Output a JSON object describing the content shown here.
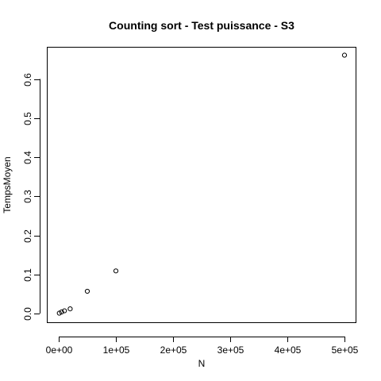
{
  "chart_data": {
    "type": "scatter",
    "title": "Counting sort - Test puissance - S3",
    "xlabel": "N",
    "ylabel": "TempsMoyen",
    "xlim": [
      0,
      500000
    ],
    "ylim": [
      0,
      0.66
    ],
    "x_ticks": [
      0,
      100000,
      200000,
      300000,
      400000,
      500000
    ],
    "x_tick_labels": [
      "0e+00",
      "1e+05",
      "2e+05",
      "3e+05",
      "4e+05",
      "5e+05"
    ],
    "y_ticks": [
      0,
      0.1,
      0.2,
      0.3,
      0.4,
      0.5,
      0.6
    ],
    "y_tick_labels": [
      "0.0",
      "0.1",
      "0.2",
      "0.3",
      "0.4",
      "0.5",
      "0.6"
    ],
    "grid": false,
    "legend": "none",
    "marker": "open-circle",
    "point_color": "#000000",
    "points": [
      {
        "x": 1000,
        "y": 0.001
      },
      {
        "x": 5000,
        "y": 0.004
      },
      {
        "x": 10000,
        "y": 0.007
      },
      {
        "x": 20000,
        "y": 0.012
      },
      {
        "x": 50000,
        "y": 0.057
      },
      {
        "x": 100000,
        "y": 0.109
      },
      {
        "x": 500000,
        "y": 0.661
      }
    ]
  }
}
